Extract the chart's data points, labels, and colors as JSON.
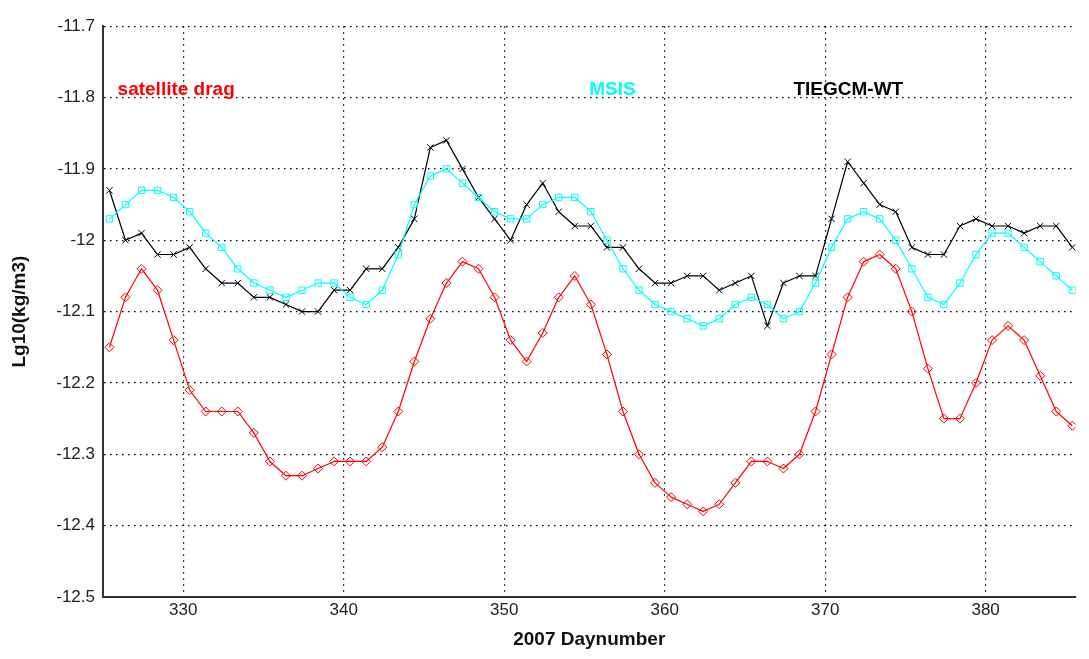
{
  "chart_data": {
    "type": "line",
    "xlabel": "2007 Daynumber",
    "ylabel": "Lg10(kg/m3)",
    "x": [
      325.4,
      326.4,
      327.4,
      328.4,
      329.4,
      330.4,
      331.4,
      332.4,
      333.4,
      334.4,
      335.4,
      336.4,
      337.4,
      338.4,
      339.4,
      340.4,
      341.4,
      342.4,
      343.4,
      344.4,
      345.4,
      346.4,
      347.4,
      348.4,
      349.4,
      350.4,
      351.4,
      352.4,
      353.4,
      354.4,
      355.4,
      356.4,
      357.4,
      358.4,
      359.4,
      360.4,
      361.4,
      362.4,
      363.4,
      364.4,
      365.4,
      366.4,
      367.4,
      368.4,
      369.4,
      370.4,
      371.4,
      372.4,
      373.4,
      374.4,
      375.4,
      376.4,
      377.4,
      378.4,
      379.4,
      380.4,
      381.4,
      382.4,
      383.4,
      384.4,
      385.4
    ],
    "series": [
      {
        "name": "satellite drag",
        "color": "#ff0000",
        "marker": "diamond",
        "values": [
          -12.15,
          -12.08,
          -12.04,
          -12.07,
          -12.14,
          -12.21,
          -12.24,
          -12.24,
          -12.24,
          -12.27,
          -12.31,
          -12.33,
          -12.33,
          -12.32,
          -12.31,
          -12.31,
          -12.31,
          -12.29,
          -12.24,
          -12.17,
          -12.11,
          -12.06,
          -12.03,
          -12.04,
          -12.08,
          -12.14,
          -12.17,
          -12.13,
          -12.08,
          -12.05,
          -12.09,
          -12.16,
          -12.24,
          -12.3,
          -12.34,
          -12.36,
          -12.37,
          -12.38,
          -12.37,
          -12.34,
          -12.31,
          -12.31,
          -12.32,
          -12.3,
          -12.24,
          -12.16,
          -12.08,
          -12.03,
          -12.02,
          -12.04,
          -12.1,
          -12.18,
          -12.25,
          -12.25,
          -12.2,
          -12.14,
          -12.12,
          -12.14,
          -12.19,
          -12.24,
          -12.26
        ]
      },
      {
        "name": "MSIS",
        "color": "#00ffff",
        "marker": "square",
        "values": [
          -11.97,
          -11.95,
          -11.93,
          -11.93,
          -11.94,
          -11.96,
          -11.99,
          -12.01,
          -12.04,
          -12.06,
          -12.07,
          -12.08,
          -12.07,
          -12.06,
          -12.06,
          -12.08,
          -12.09,
          -12.07,
          -12.02,
          -11.95,
          -11.91,
          -11.9,
          -11.92,
          -11.94,
          -11.96,
          -11.97,
          -11.97,
          -11.95,
          -11.94,
          -11.94,
          -11.96,
          -12.0,
          -12.04,
          -12.07,
          -12.09,
          -12.1,
          -12.11,
          -12.12,
          -12.11,
          -12.09,
          -12.08,
          -12.09,
          -12.11,
          -12.1,
          -12.06,
          -12.01,
          -11.97,
          -11.96,
          -11.97,
          -12.0,
          -12.04,
          -12.08,
          -12.09,
          -12.06,
          -12.02,
          -11.99,
          -11.99,
          -12.01,
          -12.03,
          -12.05,
          -12.07
        ]
      },
      {
        "name": "TIEGCM-WT",
        "color": "#000000",
        "marker": "cross",
        "values": [
          -11.93,
          -12.0,
          -11.99,
          -12.02,
          -12.02,
          -12.01,
          -12.04,
          -12.06,
          -12.06,
          -12.08,
          -12.08,
          -12.09,
          -12.1,
          -12.1,
          -12.07,
          -12.07,
          -12.04,
          -12.04,
          -12.01,
          -11.97,
          -11.87,
          -11.86,
          -11.9,
          -11.94,
          -11.97,
          -12.0,
          -11.95,
          -11.92,
          -11.96,
          -11.98,
          -11.98,
          -12.01,
          -12.01,
          -12.04,
          -12.06,
          -12.06,
          -12.05,
          -12.05,
          -12.07,
          -12.06,
          -12.05,
          -12.12,
          -12.06,
          -12.05,
          -12.05,
          -11.97,
          -11.89,
          -11.92,
          -11.95,
          -11.96,
          -12.01,
          -12.02,
          -12.02,
          -11.98,
          -11.97,
          -11.98,
          -11.98,
          -11.99,
          -11.98,
          -11.98,
          -12.01
        ]
      }
    ],
    "xlim": [
      325,
      385.6
    ],
    "xticks": [
      330,
      340,
      350,
      360,
      370,
      380
    ],
    "ylim": [
      -12.5,
      -11.7
    ],
    "yticks": [
      -12.5,
      -12.4,
      -12.3,
      -12.2,
      -12.1,
      -12,
      -11.9,
      -11.8,
      -11.7
    ],
    "grid": true,
    "legend": "top",
    "line_style": "solid"
  }
}
